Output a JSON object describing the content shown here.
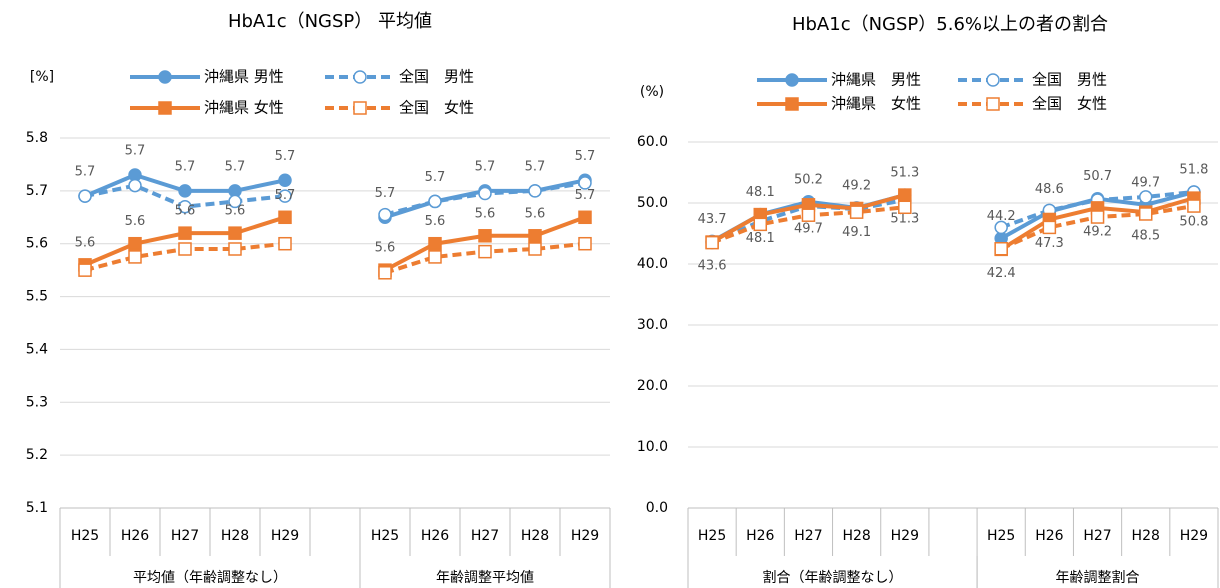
{
  "chart_data": [
    {
      "type": "line",
      "title": "HbA1c（NGSP） 平均値",
      "y_label": "[%]",
      "categories": [
        "H25",
        "H26",
        "H27",
        "H28",
        "H29",
        null,
        "H25",
        "H26",
        "H27",
        "H28",
        "H29"
      ],
      "groups": [
        "平均値（年齢調整なし）",
        "年齢調整平均値"
      ],
      "ylim": [
        5.1,
        5.8
      ],
      "yticks": [
        5.1,
        5.2,
        5.3,
        5.4,
        5.5,
        5.6,
        5.7,
        5.8
      ],
      "grid": true,
      "series": [
        {
          "name": "沖縄県 男性",
          "color": "#5b9bd5",
          "line_style": "solid",
          "marker": "circle",
          "filled": true,
          "values": [
            5.69,
            5.73,
            5.7,
            5.7,
            5.72,
            null,
            5.65,
            5.68,
            5.7,
            5.7,
            5.72
          ],
          "value_labels": [
            "5.7",
            "5.7",
            "5.7",
            "5.7",
            "5.7",
            null,
            "5.7",
            "5.7",
            "5.7",
            "5.7",
            "5.7"
          ]
        },
        {
          "name": "全国　男性",
          "color": "#5b9bd5",
          "line_style": "dashed",
          "marker": "circle",
          "filled": false,
          "values": [
            5.69,
            5.71,
            5.67,
            5.68,
            5.69,
            null,
            5.655,
            5.68,
            5.695,
            5.7,
            5.715
          ]
        },
        {
          "name": "沖縄県 女性",
          "color": "#ed7d31",
          "line_style": "solid",
          "marker": "square",
          "filled": true,
          "values": [
            5.56,
            5.6,
            5.62,
            5.62,
            5.65,
            null,
            5.55,
            5.6,
            5.615,
            5.615,
            5.65
          ],
          "value_labels": [
            "5.6",
            "5.6",
            "5.6",
            "5.6",
            "5.7",
            null,
            "5.6",
            "5.6",
            "5.6",
            "5.6",
            "5.7"
          ]
        },
        {
          "name": "全国　女性",
          "color": "#ed7d31",
          "line_style": "dashed",
          "marker": "square",
          "filled": false,
          "values": [
            5.55,
            5.575,
            5.59,
            5.59,
            5.6,
            null,
            5.545,
            5.575,
            5.585,
            5.59,
            5.6
          ]
        }
      ]
    },
    {
      "type": "line",
      "title": "HbA1c（NGSP）5.6%以上の者の割合",
      "y_label": "(%)",
      "categories": [
        "H25",
        "H26",
        "H27",
        "H28",
        "H29",
        null,
        "H25",
        "H26",
        "H27",
        "H28",
        "H29"
      ],
      "groups": [
        "割合（年齢調整なし）",
        "年齢調整割合"
      ],
      "ylim": [
        0,
        60
      ],
      "yticks": [
        {
          "value": 0,
          "label": "0.0"
        },
        {
          "value": 10,
          "label": "10.0"
        },
        {
          "value": 20,
          "label": "20.0"
        },
        {
          "value": 30,
          "label": "30.0"
        },
        {
          "value": 40,
          "label": "40.0"
        },
        {
          "value": 50,
          "label": "50.0"
        },
        {
          "value": 60,
          "label": "60.0"
        }
      ],
      "grid": true,
      "series": [
        {
          "name": "沖縄県　男性",
          "color": "#5b9bd5",
          "line_style": "solid",
          "marker": "circle",
          "filled": true,
          "values": [
            43.7,
            48.1,
            50.2,
            49.2,
            51.3,
            null,
            44.2,
            48.6,
            50.7,
            49.7,
            51.8
          ],
          "value_labels": [
            "43.7",
            "48.1",
            "50.2",
            "49.2",
            "51.3",
            null,
            "44.2",
            "48.6",
            "50.7",
            "49.7",
            "51.8"
          ]
        },
        {
          "name": "全国　男性",
          "color": "#5b9bd5",
          "line_style": "dashed",
          "marker": "circle",
          "filled": false,
          "values": [
            43.5,
            47.0,
            49.5,
            49.0,
            50.5,
            null,
            46.0,
            48.8,
            50.5,
            51.0,
            51.8
          ]
        },
        {
          "name": "沖縄県　女性",
          "color": "#ed7d31",
          "line_style": "solid",
          "marker": "square",
          "filled": true,
          "values": [
            43.6,
            48.1,
            49.7,
            49.1,
            51.3,
            null,
            42.4,
            47.3,
            49.2,
            48.5,
            50.8
          ],
          "value_labels": [
            "43.6",
            "48.1",
            "49.7",
            "49.1",
            "51.3",
            null,
            "42.4",
            "47.3",
            "49.2",
            "48.5",
            "50.8"
          ]
        },
        {
          "name": "全国　女性",
          "color": "#ed7d31",
          "line_style": "dashed",
          "marker": "square",
          "filled": false,
          "values": [
            43.5,
            46.5,
            48.0,
            48.5,
            49.3,
            null,
            42.5,
            46.0,
            47.7,
            48.2,
            49.5
          ]
        }
      ]
    }
  ]
}
